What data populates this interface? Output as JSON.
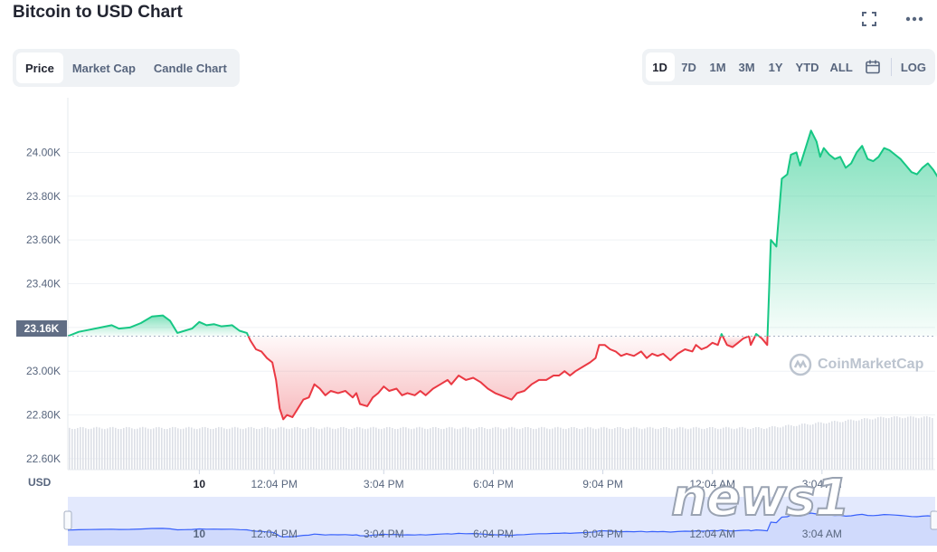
{
  "header": {
    "title": "Bitcoin to USD Chart",
    "icons": [
      "fullscreen-icon",
      "more-icon"
    ]
  },
  "chart_type_tabs": [
    {
      "label": "Price",
      "active": true
    },
    {
      "label": "Market Cap",
      "active": false
    },
    {
      "label": "Candle Chart",
      "active": false
    }
  ],
  "range_tabs": [
    {
      "label": "1D",
      "active": true
    },
    {
      "label": "7D",
      "active": false
    },
    {
      "label": "1M",
      "active": false
    },
    {
      "label": "3M",
      "active": false
    },
    {
      "label": "1Y",
      "active": false
    },
    {
      "label": "YTD",
      "active": false
    },
    {
      "label": "ALL",
      "active": false
    }
  ],
  "log_label": "LOG",
  "current_price_label": "23.16K",
  "currency_label": "USD",
  "watermark": "CoinMarketCap",
  "news_logo": "news1",
  "colors": {
    "up": "#16c784",
    "down": "#ea3943",
    "volume": "#dcdfe6",
    "navigator_line": "#3861fb",
    "navigator_fill": "#e3e9fd"
  },
  "chart_data": {
    "type": "line",
    "ylim": [
      22550,
      24250
    ],
    "yticks": [
      24000,
      23800,
      23600,
      23400,
      23200,
      23000,
      22800,
      22600
    ],
    "ytick_labels": [
      "24.00K",
      "23.80K",
      "23.60K",
      "23.40K",
      "23.20K",
      "23.00K",
      "22.80K",
      "22.60K"
    ],
    "reference_price": 23160,
    "x_labels": [
      {
        "label": "10",
        "t": 3.6,
        "bold": true
      },
      {
        "label": "12:04 PM",
        "t": 5.65
      },
      {
        "label": "3:04 PM",
        "t": 8.65
      },
      {
        "label": "6:04 PM",
        "t": 11.65
      },
      {
        "label": "9:04 PM",
        "t": 14.65
      },
      {
        "label": "12:04 AM",
        "t": 17.65
      },
      {
        "label": "3:04 AM",
        "t": 20.65
      }
    ],
    "x_range": [
      0,
      23.75
    ],
    "series": [
      {
        "values": [
          [
            0.0,
            23160
          ],
          [
            0.3,
            23180
          ],
          [
            0.6,
            23190
          ],
          [
            0.9,
            23200
          ],
          [
            1.2,
            23210
          ],
          [
            1.4,
            23195
          ],
          [
            1.7,
            23200
          ],
          [
            2.0,
            23220
          ],
          [
            2.3,
            23250
          ],
          [
            2.6,
            23255
          ],
          [
            2.8,
            23230
          ],
          [
            3.0,
            23175
          ],
          [
            3.2,
            23185
          ],
          [
            3.4,
            23195
          ],
          [
            3.6,
            23225
          ],
          [
            3.8,
            23210
          ],
          [
            4.0,
            23215
          ],
          [
            4.2,
            23205
          ],
          [
            4.5,
            23210
          ],
          [
            4.7,
            23185
          ],
          [
            4.9,
            23175
          ],
          [
            5.0,
            23140
          ],
          [
            5.15,
            23100
          ],
          [
            5.3,
            23090
          ],
          [
            5.45,
            23060
          ],
          [
            5.6,
            23040
          ],
          [
            5.7,
            22960
          ],
          [
            5.8,
            22830
          ],
          [
            5.9,
            22780
          ],
          [
            6.0,
            22800
          ],
          [
            6.15,
            22790
          ],
          [
            6.3,
            22830
          ],
          [
            6.45,
            22870
          ],
          [
            6.6,
            22880
          ],
          [
            6.75,
            22940
          ],
          [
            6.9,
            22920
          ],
          [
            7.05,
            22890
          ],
          [
            7.2,
            22910
          ],
          [
            7.4,
            22900
          ],
          [
            7.6,
            22910
          ],
          [
            7.8,
            22880
          ],
          [
            7.9,
            22900
          ],
          [
            8.0,
            22850
          ],
          [
            8.2,
            22840
          ],
          [
            8.35,
            22880
          ],
          [
            8.5,
            22900
          ],
          [
            8.65,
            22930
          ],
          [
            8.8,
            22910
          ],
          [
            9.0,
            22920
          ],
          [
            9.15,
            22890
          ],
          [
            9.3,
            22900
          ],
          [
            9.5,
            22890
          ],
          [
            9.65,
            22910
          ],
          [
            9.8,
            22890
          ],
          [
            10.0,
            22920
          ],
          [
            10.2,
            22940
          ],
          [
            10.4,
            22960
          ],
          [
            10.5,
            22940
          ],
          [
            10.7,
            22980
          ],
          [
            10.9,
            22960
          ],
          [
            11.1,
            22970
          ],
          [
            11.3,
            22950
          ],
          [
            11.5,
            22920
          ],
          [
            11.7,
            22900
          ],
          [
            11.85,
            22890
          ],
          [
            12.0,
            22880
          ],
          [
            12.15,
            22870
          ],
          [
            12.3,
            22900
          ],
          [
            12.5,
            22910
          ],
          [
            12.7,
            22940
          ],
          [
            12.9,
            22960
          ],
          [
            13.1,
            22960
          ],
          [
            13.3,
            22980
          ],
          [
            13.45,
            22980
          ],
          [
            13.6,
            23000
          ],
          [
            13.75,
            22980
          ],
          [
            13.9,
            23000
          ],
          [
            14.1,
            23020
          ],
          [
            14.3,
            23040
          ],
          [
            14.45,
            23060
          ],
          [
            14.55,
            23120
          ],
          [
            14.7,
            23120
          ],
          [
            14.85,
            23100
          ],
          [
            15.0,
            23090
          ],
          [
            15.15,
            23070
          ],
          [
            15.3,
            23080
          ],
          [
            15.5,
            23070
          ],
          [
            15.7,
            23090
          ],
          [
            15.85,
            23060
          ],
          [
            16.0,
            23080
          ],
          [
            16.15,
            23070
          ],
          [
            16.3,
            23080
          ],
          [
            16.5,
            23050
          ],
          [
            16.7,
            23080
          ],
          [
            16.9,
            23100
          ],
          [
            17.1,
            23090
          ],
          [
            17.2,
            23120
          ],
          [
            17.35,
            23100
          ],
          [
            17.5,
            23110
          ],
          [
            17.65,
            23130
          ],
          [
            17.8,
            23120
          ],
          [
            17.9,
            23170
          ],
          [
            18.05,
            23120
          ],
          [
            18.2,
            23110
          ],
          [
            18.35,
            23130
          ],
          [
            18.5,
            23150
          ],
          [
            18.65,
            23160
          ],
          [
            18.7,
            23120
          ],
          [
            18.85,
            23170
          ],
          [
            19.0,
            23150
          ],
          [
            19.15,
            23120
          ],
          [
            19.25,
            23600
          ],
          [
            19.4,
            23570
          ],
          [
            19.55,
            23880
          ],
          [
            19.7,
            23900
          ],
          [
            19.8,
            23990
          ],
          [
            19.95,
            24000
          ],
          [
            20.05,
            23940
          ],
          [
            20.2,
            24020
          ],
          [
            20.35,
            24100
          ],
          [
            20.5,
            24050
          ],
          [
            20.6,
            23980
          ],
          [
            20.7,
            24020
          ],
          [
            20.85,
            23990
          ],
          [
            21.0,
            23970
          ],
          [
            21.15,
            23980
          ],
          [
            21.3,
            23930
          ],
          [
            21.45,
            23950
          ],
          [
            21.6,
            24000
          ],
          [
            21.75,
            24030
          ],
          [
            21.9,
            23970
          ],
          [
            22.05,
            23960
          ],
          [
            22.2,
            23980
          ],
          [
            22.35,
            24020
          ],
          [
            22.5,
            24010
          ],
          [
            22.65,
            23990
          ],
          [
            22.8,
            23970
          ],
          [
            22.95,
            23940
          ],
          [
            23.1,
            23910
          ],
          [
            23.25,
            23900
          ],
          [
            23.4,
            23930
          ],
          [
            23.55,
            23950
          ],
          [
            23.7,
            23920
          ],
          [
            23.85,
            23880
          ],
          [
            24.0,
            23780
          ]
        ]
      }
    ]
  }
}
